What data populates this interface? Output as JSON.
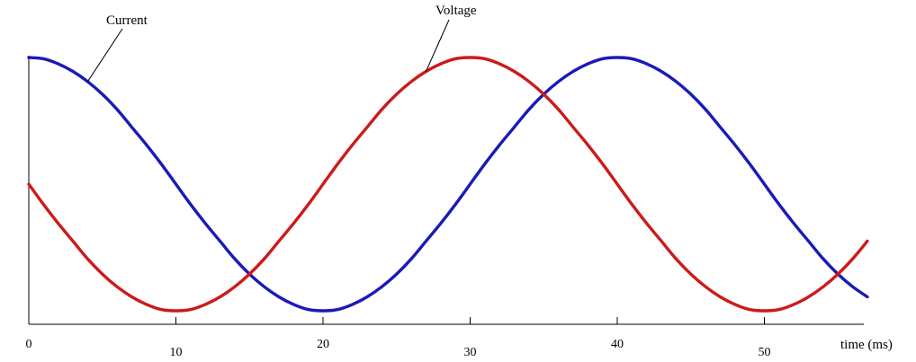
{
  "chart_data": {
    "type": "line",
    "title": "",
    "xlabel": "time (ms)",
    "ylabel": "",
    "xlim": [
      0,
      57
    ],
    "ylim": [
      -1,
      1
    ],
    "x_ticks": [
      0,
      10,
      20,
      30,
      40,
      50
    ],
    "x_tick_labels": [
      "0",
      "10",
      "20",
      "30",
      "40",
      "50"
    ],
    "grid": false,
    "legend": "none",
    "series": [
      {
        "name": "Current",
        "color": "#1a1ab8",
        "x": [
          0,
          1,
          2,
          3,
          4,
          5,
          6,
          7,
          8,
          9,
          10,
          11,
          12,
          13,
          14,
          15,
          16,
          17,
          18,
          19,
          20,
          21,
          22,
          23,
          24,
          25,
          26,
          27,
          28,
          29,
          30,
          31,
          32,
          33,
          34,
          35,
          36,
          37,
          38,
          39,
          40,
          41,
          42,
          43,
          44,
          45,
          46,
          47,
          48,
          49,
          50,
          51,
          52,
          53,
          54,
          55,
          56,
          57
        ],
        "values": [
          1.0,
          0.99,
          0.95,
          0.89,
          0.81,
          0.71,
          0.59,
          0.45,
          0.31,
          0.16,
          0.0,
          -0.16,
          -0.31,
          -0.45,
          -0.59,
          -0.71,
          -0.81,
          -0.89,
          -0.95,
          -0.99,
          -1.0,
          -0.99,
          -0.95,
          -0.89,
          -0.81,
          -0.71,
          -0.59,
          -0.45,
          -0.31,
          -0.16,
          0.0,
          0.16,
          0.31,
          0.45,
          0.59,
          0.71,
          0.81,
          0.89,
          0.95,
          0.99,
          1.0,
          0.99,
          0.95,
          0.89,
          0.81,
          0.71,
          0.59,
          0.45,
          0.31,
          0.16,
          0.0,
          -0.16,
          -0.31,
          -0.45,
          -0.59,
          -0.71,
          -0.81,
          -0.89
        ]
      },
      {
        "name": "Voltage",
        "color": "#cc1a1a",
        "x": [
          0,
          1,
          2,
          3,
          4,
          5,
          6,
          7,
          8,
          9,
          10,
          11,
          12,
          13,
          14,
          15,
          16,
          17,
          18,
          19,
          20,
          21,
          22,
          23,
          24,
          25,
          26,
          27,
          28,
          29,
          30,
          31,
          32,
          33,
          34,
          35,
          36,
          37,
          38,
          39,
          40,
          41,
          42,
          43,
          44,
          45,
          46,
          47,
          48,
          49,
          50,
          51,
          52,
          53,
          54,
          55,
          56,
          57
        ],
        "values": [
          0.0,
          -0.16,
          -0.31,
          -0.45,
          -0.59,
          -0.71,
          -0.81,
          -0.89,
          -0.95,
          -0.99,
          -1.0,
          -0.99,
          -0.95,
          -0.89,
          -0.81,
          -0.71,
          -0.59,
          -0.45,
          -0.31,
          -0.16,
          0.0,
          0.16,
          0.31,
          0.45,
          0.59,
          0.71,
          0.81,
          0.89,
          0.95,
          0.99,
          1.0,
          0.99,
          0.95,
          0.89,
          0.81,
          0.71,
          0.59,
          0.45,
          0.31,
          0.16,
          0.0,
          -0.16,
          -0.31,
          -0.45,
          -0.59,
          -0.71,
          -0.81,
          -0.89,
          -0.95,
          -0.99,
          -1.0,
          -0.99,
          -0.95,
          -0.89,
          -0.81,
          -0.71,
          -0.59,
          -0.45
        ]
      }
    ],
    "annotations": [
      {
        "text": "Current",
        "series": "Current",
        "x": 4
      },
      {
        "text": "Voltage",
        "series": "Voltage",
        "x": 27
      }
    ]
  }
}
